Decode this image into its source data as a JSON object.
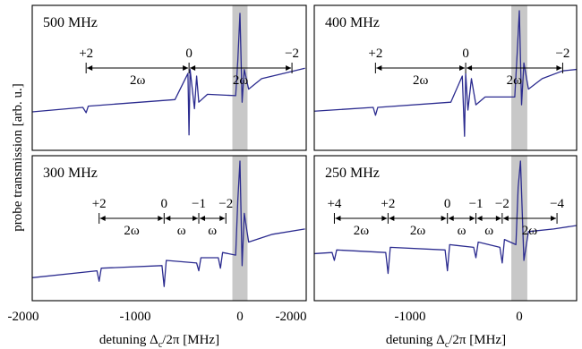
{
  "figure": {
    "ylabel": "probe transmission [arb. u.]",
    "xlabel": "detuning Δ",
    "xlabel_sub": "c",
    "xlabel_tail": "/2π [MHz]"
  },
  "chart_data": [
    {
      "type": "line",
      "title": "500 MHz",
      "xlim": [
        -2000,
        600
      ],
      "series": [
        {
          "x": [
            -2000,
            -1450,
            -1420,
            -1400,
            -600,
            -480,
            -470,
            -460,
            -420,
            -400,
            -380,
            -300,
            -40,
            -20,
            0,
            20,
            40,
            80,
            200,
            400,
            600
          ],
          "y": [
            0.22,
            0.26,
            0.22,
            0.27,
            0.32,
            0.52,
            0.05,
            0.55,
            0.25,
            0.5,
            0.3,
            0.36,
            0.35,
            0.62,
            0.98,
            0.3,
            0.55,
            0.4,
            0.48,
            0.52,
            0.56
          ]
        }
      ],
      "markers": [
        {
          "label": "+2",
          "x": -1420
        },
        {
          "label": "0",
          "x": -470
        },
        {
          "label": "−2",
          "x": 480
        }
      ],
      "arrows": [
        {
          "label": "2ω",
          "from": -1420,
          "to": -470
        },
        {
          "label": "2ω",
          "from": -470,
          "to": 480
        }
      ]
    },
    {
      "type": "line",
      "title": "400 MHz",
      "xlim": [
        -2000,
        600
      ],
      "series": [
        {
          "x": [
            -2000,
            -1280,
            -1260,
            -1240,
            -600,
            -500,
            -480,
            -470,
            -450,
            -420,
            -380,
            -300,
            -40,
            -20,
            0,
            20,
            40,
            80,
            200,
            380,
            600
          ],
          "y": [
            0.22,
            0.26,
            0.2,
            0.26,
            0.3,
            0.5,
            0.04,
            0.52,
            0.24,
            0.48,
            0.28,
            0.34,
            0.34,
            0.66,
            1.0,
            0.28,
            0.6,
            0.4,
            0.48,
            0.54,
            0.56
          ]
        }
      ],
      "markers": [
        {
          "label": "+2",
          "x": -1260
        },
        {
          "label": "0",
          "x": -470
        },
        {
          "label": "−2",
          "x": 380
        }
      ],
      "arrows": [
        {
          "label": "2ω",
          "from": -1260,
          "to": -470
        },
        {
          "label": "2ω",
          "from": -470,
          "to": 380
        }
      ]
    },
    {
      "type": "line",
      "title": "300 MHz",
      "xlim": [
        -2000,
        600
      ],
      "series": [
        {
          "x": [
            -2000,
            -1320,
            -1300,
            -1280,
            -720,
            -700,
            -680,
            -400,
            -380,
            -360,
            -200,
            -180,
            -160,
            -40,
            -20,
            0,
            20,
            40,
            80,
            300,
            600
          ],
          "y": [
            0.1,
            0.16,
            0.08,
            0.18,
            0.2,
            0.04,
            0.24,
            0.22,
            0.16,
            0.26,
            0.26,
            0.18,
            0.3,
            0.28,
            0.7,
            1.0,
            0.2,
            0.6,
            0.38,
            0.44,
            0.48
          ]
        }
      ],
      "markers": [
        {
          "label": "+2",
          "x": -1300
        },
        {
          "label": "0",
          "x": -700
        },
        {
          "label": "−1",
          "x": -380
        },
        {
          "label": "−2",
          "x": -130
        }
      ],
      "arrows": [
        {
          "label": "2ω",
          "from": -1300,
          "to": -700
        },
        {
          "label": "ω",
          "from": -700,
          "to": -380
        },
        {
          "label": "ω",
          "from": -380,
          "to": -130
        }
      ]
    },
    {
      "type": "line",
      "title": "250 MHz",
      "xlim": [
        -2000,
        600
      ],
      "series": [
        {
          "x": [
            -2000,
            -1640,
            -1620,
            -1600,
            -1170,
            -1150,
            -1130,
            -650,
            -630,
            -610,
            -400,
            -380,
            -360,
            -170,
            -150,
            -130,
            -30,
            -10,
            10,
            40,
            80,
            300,
            600
          ],
          "y": [
            0.28,
            0.3,
            0.24,
            0.32,
            0.3,
            0.14,
            0.34,
            0.32,
            0.16,
            0.36,
            0.34,
            0.26,
            0.38,
            0.34,
            0.22,
            0.4,
            0.36,
            0.8,
            1.0,
            0.24,
            0.46,
            0.48,
            0.52
          ]
        }
      ],
      "markers": [
        {
          "label": "+4",
          "x": -1620
        },
        {
          "label": "+2",
          "x": -1150
        },
        {
          "label": "0",
          "x": -630
        },
        {
          "label": "−1",
          "x": -380
        },
        {
          "label": "−2",
          "x": -150
        },
        {
          "label": "−4",
          "x": 330
        }
      ],
      "arrows": [
        {
          "label": "2ω",
          "from": -1620,
          "to": -1150
        },
        {
          "label": "2ω",
          "from": -1150,
          "to": -630
        },
        {
          "label": "ω",
          "from": -630,
          "to": -380
        },
        {
          "label": "ω",
          "from": -380,
          "to": -150
        },
        {
          "label": "2ω",
          "from": -150,
          "to": 330
        }
      ]
    }
  ],
  "x_ticks": [
    {
      "value": -2000,
      "label": "-2000"
    },
    {
      "value": -1000,
      "label": "-1000"
    },
    {
      "value": 0,
      "label": "0"
    }
  ]
}
